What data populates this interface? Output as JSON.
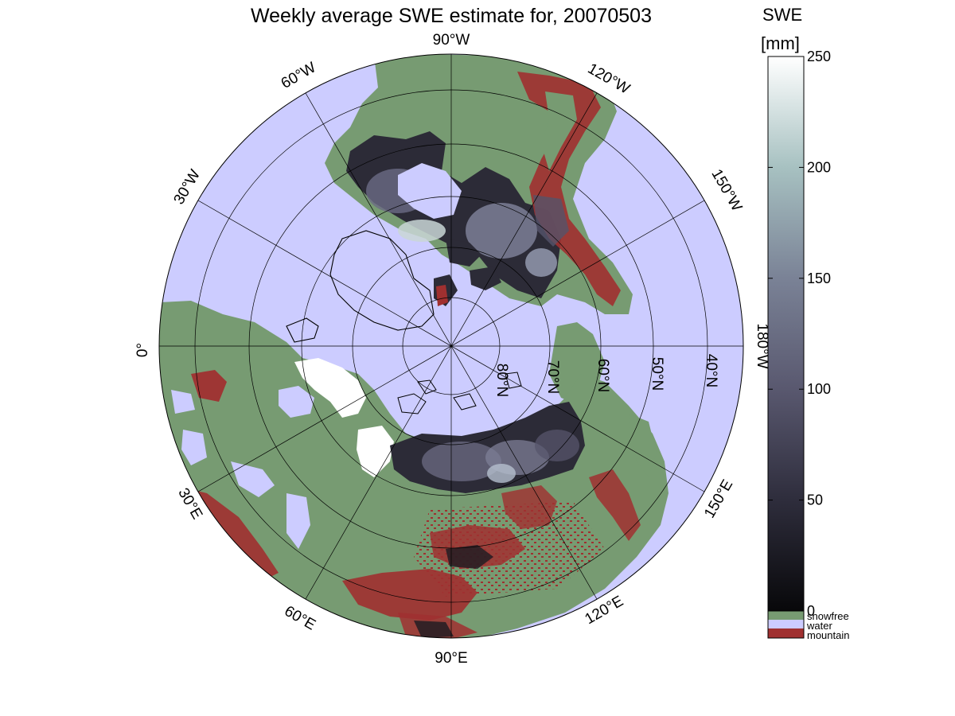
{
  "title": "Weekly average SWE estimate for, 20070503",
  "colorbar": {
    "title_line1": "SWE",
    "title_line2": "[mm]",
    "min": 0,
    "max": 250,
    "ticks": [
      "0",
      "50",
      "100",
      "150",
      "200",
      "250"
    ],
    "tick_values": [
      0,
      50,
      100,
      150,
      200,
      250
    ],
    "gradient": [
      "#08080a",
      "#2e2d3c",
      "#59586f",
      "#7a8296",
      "#a7c1c1",
      "#ffffff"
    ],
    "categories": [
      {
        "label": "snowfree",
        "color": "#779b72"
      },
      {
        "label": "water",
        "color": "#ccccff"
      },
      {
        "label": "mountain",
        "color": "#a03030"
      }
    ]
  },
  "map": {
    "projection": "north-polar-stereographic",
    "colors": {
      "ocean": "#ccccff",
      "snowfree": "#779b72",
      "mountain": "#a03030",
      "snow_low": "#1a1a22",
      "snow_mid": "#55546a",
      "snow_high": "#ffffff"
    },
    "longitude_labels": [
      {
        "text": "90°W",
        "lon": -90
      },
      {
        "text": "120°W",
        "lon": -120
      },
      {
        "text": "150°W",
        "lon": -150
      },
      {
        "text": "180°W",
        "lon": 180
      },
      {
        "text": "150°E",
        "lon": 150
      },
      {
        "text": "120°E",
        "lon": 120
      },
      {
        "text": "90°E",
        "lon": 90
      },
      {
        "text": "60°E",
        "lon": 60
      },
      {
        "text": "30°E",
        "lon": 30
      },
      {
        "text": "0°",
        "lon": 0
      },
      {
        "text": "30°W",
        "lon": -30
      },
      {
        "text": "60°W",
        "lon": -60
      }
    ],
    "latitude_labels": [
      {
        "text": "80°N",
        "lat": 80
      },
      {
        "text": "70°N",
        "lat": 70
      },
      {
        "text": "60°N",
        "lat": 60
      },
      {
        "text": "50°N",
        "lat": 50
      },
      {
        "text": "40°N",
        "lat": 40
      }
    ]
  }
}
